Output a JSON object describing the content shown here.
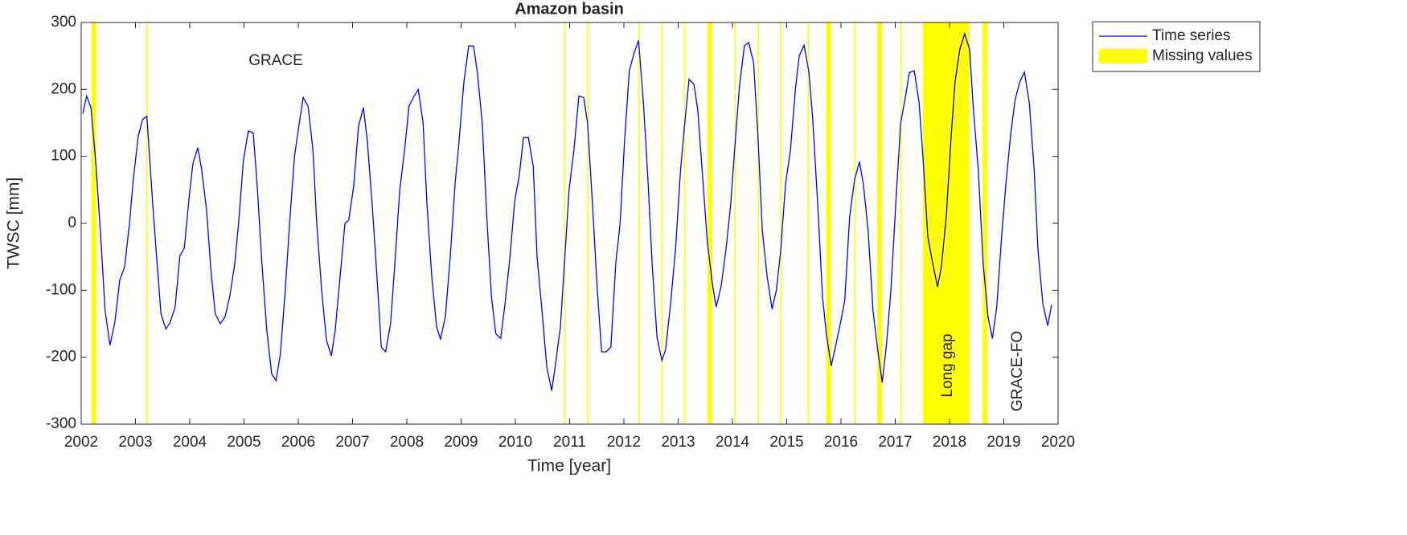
{
  "chart_data": {
    "type": "line",
    "title": "Amazon basin",
    "x_label": "Time [year]",
    "y_label": "TWSC [mm]",
    "x": [
      2002.03,
      2002.1,
      2002.18,
      2002.27,
      2002.36,
      2002.44,
      2002.53,
      2002.62,
      2002.71,
      2002.8,
      2002.89,
      2002.96,
      2003.05,
      2003.13,
      2003.21,
      2003.3,
      2003.38,
      2003.47,
      2003.56,
      2003.64,
      2003.73,
      2003.82,
      2003.9,
      2003.99,
      2004.06,
      2004.15,
      2004.22,
      2004.31,
      2004.39,
      2004.47,
      2004.56,
      2004.65,
      2004.74,
      2004.83,
      2004.9,
      2004.99,
      2005.08,
      2005.17,
      2005.24,
      2005.33,
      2005.42,
      2005.51,
      2005.59,
      2005.67,
      2005.76,
      2005.84,
      2005.93,
      2006.01,
      2006.09,
      2006.18,
      2006.27,
      2006.34,
      2006.43,
      2006.52,
      2006.61,
      2006.68,
      2006.77,
      2006.86,
      2006.93,
      2007.02,
      2007.11,
      2007.2,
      2007.27,
      2007.36,
      2007.45,
      2007.53,
      2007.61,
      2007.7,
      2007.78,
      2007.87,
      2007.96,
      2008.04,
      2008.12,
      2008.21,
      2008.3,
      2008.37,
      2008.46,
      2008.55,
      2008.62,
      2008.71,
      2008.8,
      2008.89,
      2008.96,
      2009.05,
      2009.14,
      2009.23,
      2009.3,
      2009.39,
      2009.48,
      2009.56,
      2009.64,
      2009.73,
      2009.81,
      2009.9,
      2009.99,
      2010.07,
      2010.15,
      2010.24,
      2010.33,
      2010.4,
      2010.49,
      2010.58,
      2010.67,
      2010.74,
      2010.83,
      2010.92,
      2010.99,
      2011.08,
      2011.17,
      2011.26,
      2011.33,
      2011.42,
      2011.51,
      2011.59,
      2011.67,
      2011.76,
      2011.85,
      2011.93,
      2012.01,
      2012.1,
      2012.19,
      2012.27,
      2012.36,
      2012.44,
      2012.52,
      2012.61,
      2012.7,
      2012.77,
      2012.86,
      2012.95,
      2013.04,
      2013.11,
      2013.2,
      2013.29,
      2013.36,
      2013.45,
      2013.54,
      2013.63,
      2013.7,
      2013.79,
      2013.88,
      2013.97,
      2014.04,
      2014.13,
      2014.22,
      2014.3,
      2014.39,
      2014.47,
      2014.55,
      2014.64,
      2014.73,
      2014.81,
      2014.89,
      2014.98,
      2015.07,
      2015.16,
      2015.23,
      2015.32,
      2015.41,
      2015.48,
      2015.57,
      2015.66,
      2015.73,
      2015.82,
      2015.91,
      2016.0,
      2016.07,
      2016.16,
      2016.25,
      2016.34,
      2016.41,
      2016.5,
      2016.59,
      2016.67,
      2016.76,
      2016.84,
      2016.92,
      2017.01,
      2017.1,
      2017.19,
      2017.26,
      2017.35,
      2017.44,
      2017.51,
      2017.6,
      2017.69,
      2017.78,
      2017.85,
      2017.94,
      2018.03,
      2018.1,
      2018.19,
      2018.28,
      2018.37,
      2018.44,
      2018.53,
      2018.62,
      2018.71,
      2018.79,
      2018.87,
      2018.96,
      2019.04,
      2019.13,
      2019.21,
      2019.29,
      2019.38,
      2019.47,
      2019.56,
      2019.63,
      2019.72,
      2019.81,
      2019.88
    ],
    "series": [
      {
        "name": "Time series",
        "color": "#0000ff",
        "values": [
          164,
          190,
          173,
          90,
          -20,
          -130,
          -182,
          -148,
          -85,
          -65,
          0,
          65,
          130,
          155,
          160,
          50,
          -40,
          -135,
          -158,
          -148,
          -125,
          -48,
          -37,
          40,
          90,
          113,
          80,
          20,
          -70,
          -135,
          -150,
          -140,
          -108,
          -60,
          0,
          95,
          138,
          135,
          60,
          -60,
          -160,
          -225,
          -235,
          -195,
          -100,
          0,
          100,
          145,
          188,
          175,
          110,
          0,
          -100,
          -175,
          -198,
          -160,
          -80,
          0,
          5,
          55,
          145,
          173,
          125,
          30,
          -80,
          -185,
          -192,
          -150,
          -60,
          50,
          110,
          175,
          188,
          200,
          150,
          30,
          -80,
          -155,
          -173,
          -140,
          -50,
          60,
          120,
          210,
          265,
          265,
          225,
          150,
          0,
          -110,
          -165,
          -172,
          -120,
          -50,
          35,
          70,
          128,
          128,
          85,
          -50,
          -130,
          -215,
          -250,
          -210,
          -155,
          -40,
          50,
          110,
          190,
          188,
          150,
          30,
          -100,
          -192,
          -192,
          -185,
          -60,
          0,
          120,
          228,
          255,
          273,
          180,
          70,
          -60,
          -170,
          -205,
          -188,
          -120,
          -40,
          75,
          140,
          215,
          208,
          170,
          70,
          -30,
          -90,
          -125,
          -95,
          -40,
          30,
          110,
          205,
          265,
          270,
          240,
          130,
          -10,
          -80,
          -128,
          -100,
          -40,
          60,
          110,
          200,
          250,
          266,
          225,
          155,
          30,
          -110,
          -165,
          -213,
          -180,
          -145,
          -115,
          10,
          65,
          92,
          60,
          -10,
          -130,
          -185,
          -238,
          -180,
          -100,
          30,
          150,
          190,
          225,
          228,
          180,
          100,
          -20,
          -60,
          -95,
          -65,
          10,
          130,
          210,
          260,
          283,
          260,
          170,
          80,
          -60,
          -140,
          -172,
          -125,
          -20,
          60,
          135,
          185,
          210,
          226,
          180,
          80,
          -40,
          -120,
          -153,
          -122
        ]
      },
      {
        "name": "Missing values",
        "color": "#ffff00",
        "spans": [
          [
            2002.19,
            2002.28
          ],
          [
            2003.2,
            2003.22
          ],
          [
            2010.9,
            2010.92
          ],
          [
            2011.33,
            2011.35
          ],
          [
            2012.27,
            2012.29
          ],
          [
            2012.7,
            2012.71
          ],
          [
            2013.11,
            2013.13
          ],
          [
            2013.54,
            2013.63
          ],
          [
            2014.04,
            2014.06
          ],
          [
            2014.47,
            2014.49
          ],
          [
            2014.89,
            2014.9
          ],
          [
            2015.39,
            2015.41
          ],
          [
            2015.73,
            2015.82
          ],
          [
            2016.25,
            2016.27
          ],
          [
            2016.67,
            2016.76
          ],
          [
            2017.1,
            2017.11
          ],
          [
            2017.51,
            2018.37
          ],
          [
            2018.61,
            2018.7
          ]
        ]
      }
    ],
    "annotations": [
      "GRACE",
      "Long gap",
      "GRACE-FO"
    ],
    "xlim": [
      2002,
      2020
    ],
    "xticks": [
      2002,
      2003,
      2004,
      2005,
      2006,
      2007,
      2008,
      2009,
      2010,
      2011,
      2012,
      2013,
      2014,
      2015,
      2016,
      2017,
      2018,
      2019,
      2020
    ],
    "ylim": [
      -300,
      300
    ],
    "yticks": [
      -300,
      -200,
      -100,
      0,
      100,
      200,
      300
    ],
    "grid": false,
    "legend": "outside-top-right"
  }
}
